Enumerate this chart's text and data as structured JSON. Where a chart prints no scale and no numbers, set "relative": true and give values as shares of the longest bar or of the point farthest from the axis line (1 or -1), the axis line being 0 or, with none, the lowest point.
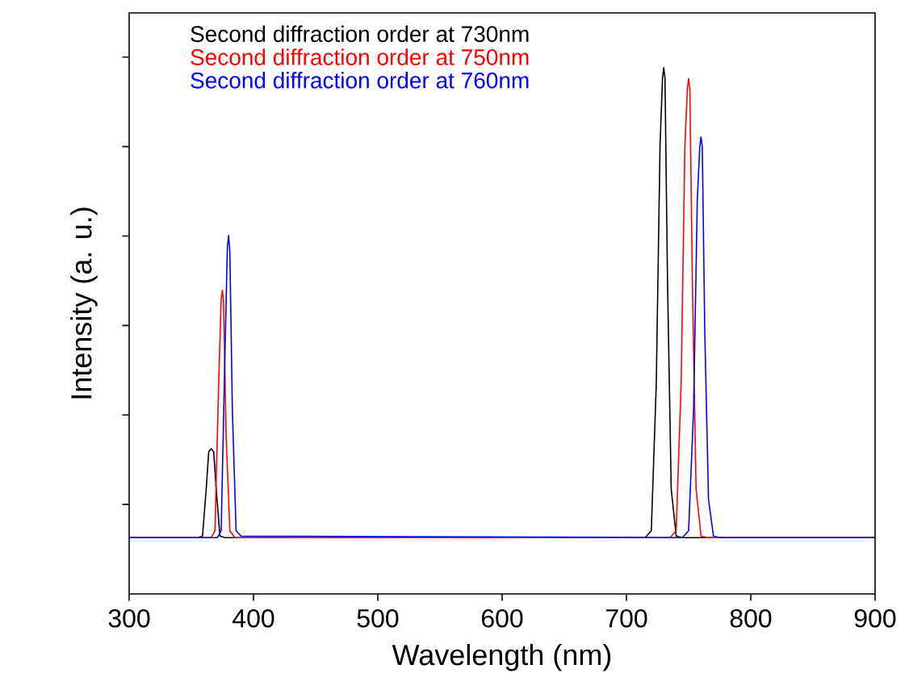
{
  "chart_data": {
    "type": "line",
    "xlabel": "Wavelength (nm)",
    "ylabel": "Intensity (a. u.)",
    "relative": true,
    "xlim": [
      300,
      900
    ],
    "xticks": [
      300,
      400,
      500,
      600,
      700,
      800,
      900
    ],
    "legend": "top left",
    "grid": false,
    "series": [
      {
        "name": "Second diffraction order at 730nm",
        "color": "#000000",
        "x": [
          300,
          355,
          359,
          362,
          364,
          366,
          368,
          370,
          373,
          377,
          715,
          720,
          724,
          727,
          729,
          730,
          731,
          733,
          736,
          740,
          745,
          900
        ],
        "values": [
          0.107,
          0.107,
          0.11,
          0.2,
          0.27,
          0.276,
          0.27,
          0.2,
          0.11,
          0.107,
          0.107,
          0.12,
          0.4,
          0.85,
          0.98,
          1,
          0.98,
          0.6,
          0.2,
          0.11,
          0.107,
          0.107
        ]
      },
      {
        "name": "Second diffraction order at 750nm",
        "color": "#ff0000",
        "x": [
          300,
          366,
          369,
          372,
          374,
          375,
          376,
          378,
          381,
          385,
          735,
          740,
          744,
          747,
          749,
          750,
          751,
          753,
          756,
          760,
          765,
          900
        ],
        "values": [
          0.107,
          0.107,
          0.12,
          0.4,
          0.56,
          0.577,
          0.55,
          0.3,
          0.12,
          0.107,
          0.107,
          0.12,
          0.4,
          0.85,
          0.96,
          0.979,
          0.96,
          0.6,
          0.2,
          0.11,
          0.107,
          0.107
        ]
      },
      {
        "name": "Second diffraction order at 760nm",
        "color": "#0000ff",
        "x": [
          300,
          371,
          374,
          377,
          379,
          380,
          381,
          383,
          386,
          390,
          745,
          750,
          754,
          757,
          759,
          760,
          761,
          763,
          766,
          770,
          775,
          900
        ],
        "values": [
          0.107,
          0.107,
          0.12,
          0.45,
          0.66,
          0.681,
          0.65,
          0.35,
          0.12,
          0.11,
          0.107,
          0.12,
          0.35,
          0.75,
          0.85,
          0.868,
          0.85,
          0.5,
          0.18,
          0.11,
          0.107,
          0.107
        ]
      }
    ]
  }
}
